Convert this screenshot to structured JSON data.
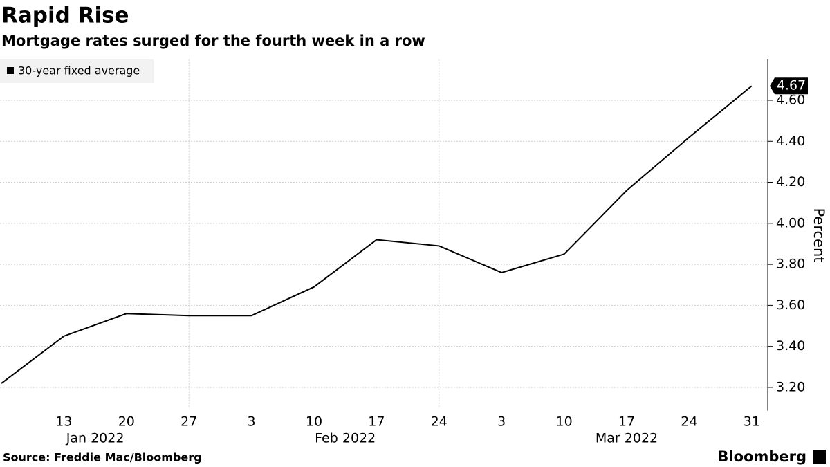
{
  "chart_data": {
    "type": "line",
    "title": "Rapid Rise",
    "subtitle": "Mortgage rates surged for the fourth week in a row",
    "categories": [
      null,
      "13",
      "20",
      "27",
      "3",
      "10",
      "17",
      "24",
      "3",
      "10",
      "17",
      "24",
      "31"
    ],
    "month_labels": [
      "Jan 2022",
      null,
      null,
      null,
      "Feb 2022",
      null,
      null,
      null,
      "Mar 2022",
      null,
      null,
      null,
      null
    ],
    "series": [
      {
        "name": "30-year fixed average",
        "color": "#000000",
        "values": [
          3.22,
          3.45,
          3.56,
          3.55,
          3.55,
          3.69,
          3.92,
          3.89,
          3.76,
          3.85,
          4.16,
          4.42,
          4.67
        ]
      }
    ],
    "ylabel": "Percent",
    "ylim": [
      3.1,
      4.8
    ],
    "yticks": [
      {
        "value": 3.2,
        "label": "3.20"
      },
      {
        "value": 3.4,
        "label": "3.40"
      },
      {
        "value": 3.6,
        "label": "3.60"
      },
      {
        "value": 3.8,
        "label": "3.80"
      },
      {
        "value": 4.0,
        "label": "4.00"
      },
      {
        "value": 4.2,
        "label": "4.20"
      },
      {
        "value": 4.4,
        "label": "4.40"
      },
      {
        "value": 4.6,
        "label": "4.60"
      }
    ],
    "grid": true,
    "axis_side": "right",
    "legend": "top-left",
    "source": "Source: Freddie Mac/Bloomberg",
    "brand": "Bloomberg"
  }
}
